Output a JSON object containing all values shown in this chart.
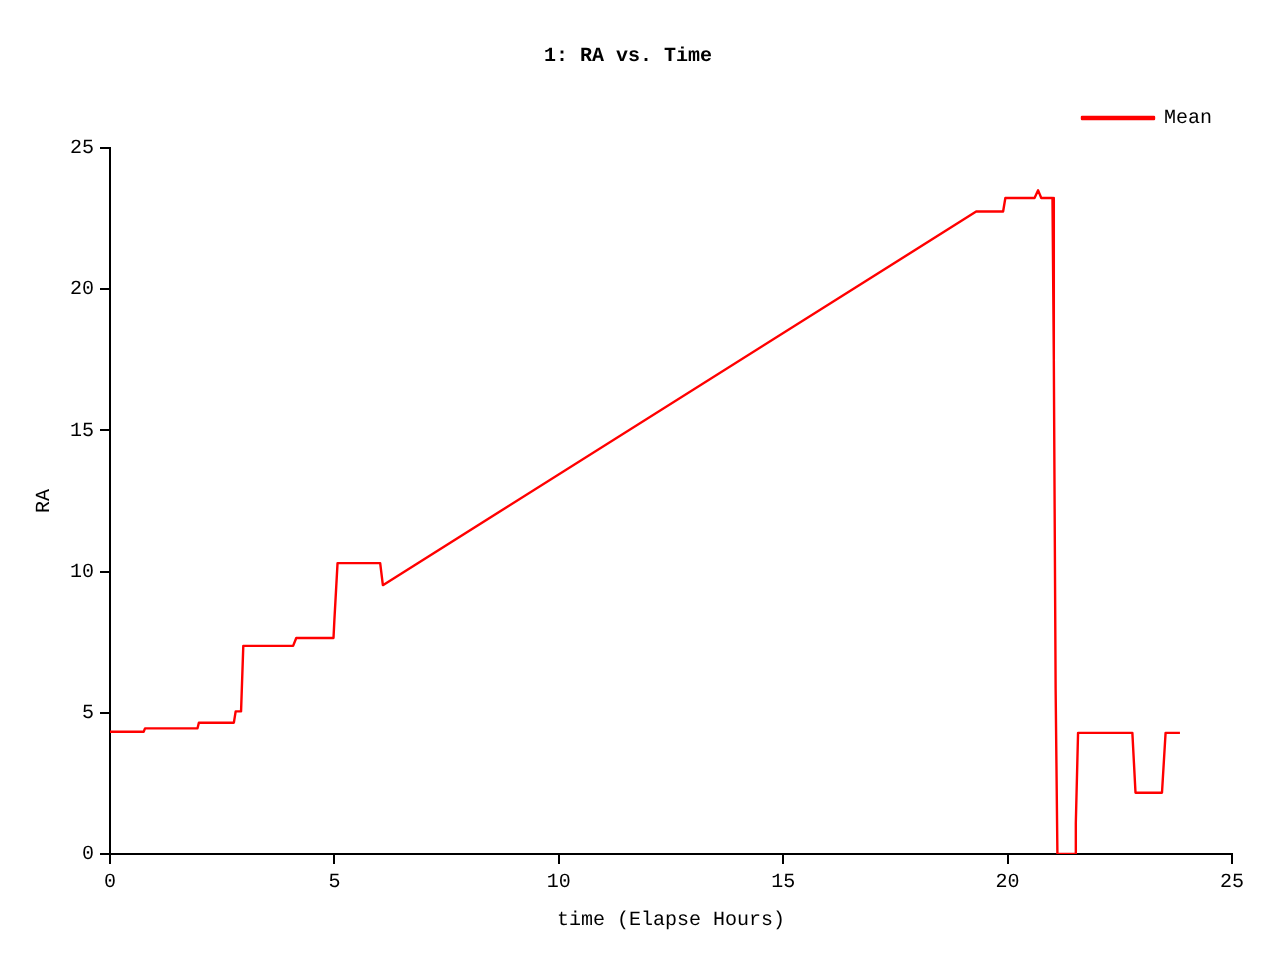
{
  "chart_data": {
    "type": "line",
    "title": "1: RA vs. Time",
    "xlabel": "time (Elapse Hours)",
    "ylabel": "RA",
    "xlim": [
      0,
      25
    ],
    "xticks": [
      0,
      5,
      10,
      15,
      20,
      25
    ],
    "ylim": [
      0,
      25
    ],
    "yticks": [
      0,
      5,
      10,
      15,
      20,
      25
    ],
    "grid": false,
    "legend": "top right",
    "marker": "none",
    "series": [
      {
        "name": "Mean",
        "color": "#ff0000",
        "x": [
          0,
          0.75,
          0.78,
          1.95,
          1.98,
          2.76,
          2.8,
          2.92,
          2.97,
          4.08,
          4.15,
          4.98,
          5.0,
          5.07,
          6.02,
          6.08,
          19.3,
          19.9,
          19.95,
          20.6,
          20.68,
          20.75,
          21.0,
          21.03,
          21.07,
          21.11,
          21.49,
          21.52,
          21.57,
          22.78,
          22.85,
          23.44,
          23.52,
          23.84
        ],
        "values": [
          4.33,
          4.33,
          4.45,
          4.45,
          4.65,
          4.65,
          5.05,
          5.05,
          7.37,
          7.37,
          7.65,
          7.65,
          8.3,
          10.3,
          10.3,
          9.52,
          22.75,
          22.75,
          23.23,
          23.23,
          23.5,
          23.23,
          23.23,
          17.5,
          5.86,
          0,
          0,
          1.1,
          4.29,
          4.29,
          2.17,
          2.17,
          4.29,
          4.29
        ]
      }
    ]
  }
}
